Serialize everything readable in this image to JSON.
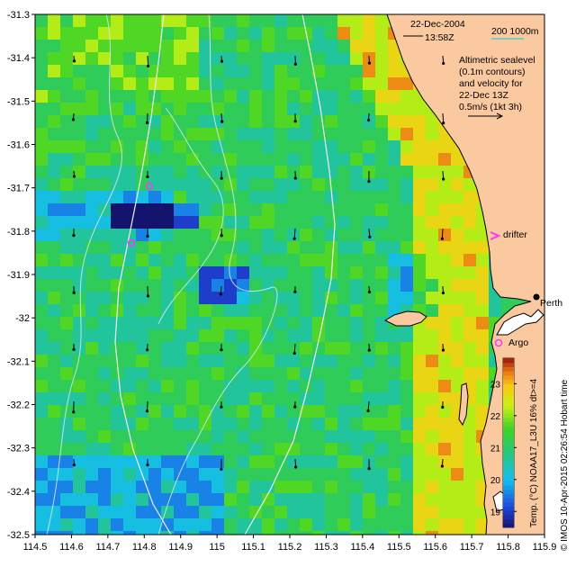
{
  "header": {
    "date": "22-Dec-2004",
    "time": "13:58Z",
    "scale_label": "200  1000m"
  },
  "legend": {
    "line1": "Altimetric sealevel",
    "line2": "(0.1m contours)",
    "line3": "and velocity for",
    "line4": "22-Dec 13Z",
    "line5": "0.5m/s (1kt 3h)"
  },
  "labels": {
    "drifter": "drifter",
    "argo": "Argo",
    "perth": "Perth"
  },
  "colorbar": {
    "ticks": [
      "19",
      "20",
      "21",
      "22",
      "23"
    ],
    "title": "Temp. (°C) NOAA17_L3U 16% dt>=4",
    "min": 18.5,
    "max": 23.8
  },
  "credit": "© IMOS 10-Apr-2015 02:26:54 Hobart time",
  "axes": {
    "x_ticks": [
      "114.5",
      "114.6",
      "114.7",
      "114.8",
      "114.9",
      "115",
      "115.1",
      "115.2",
      "115.3",
      "115.4",
      "115.5",
      "115.6",
      "115.7",
      "115.8",
      "115.9"
    ],
    "y_ticks": [
      "-31.3",
      "-31.4",
      "-31.5",
      "-31.6",
      "-31.7",
      "-31.8",
      "-31.9",
      "-32",
      "-32.1",
      "-32.2",
      "-32.3",
      "-32.4",
      "-32.5"
    ],
    "lon_range": [
      114.5,
      115.9
    ],
    "lat_range": [
      -32.5,
      -31.3
    ]
  },
  "colors": {
    "land": "#fbc9a0",
    "coast": "#000000",
    "contour": "#dddddd",
    "marker": "#ff33ff",
    "arrow": "#000000",
    "scale_line": "#33cccc"
  }
}
